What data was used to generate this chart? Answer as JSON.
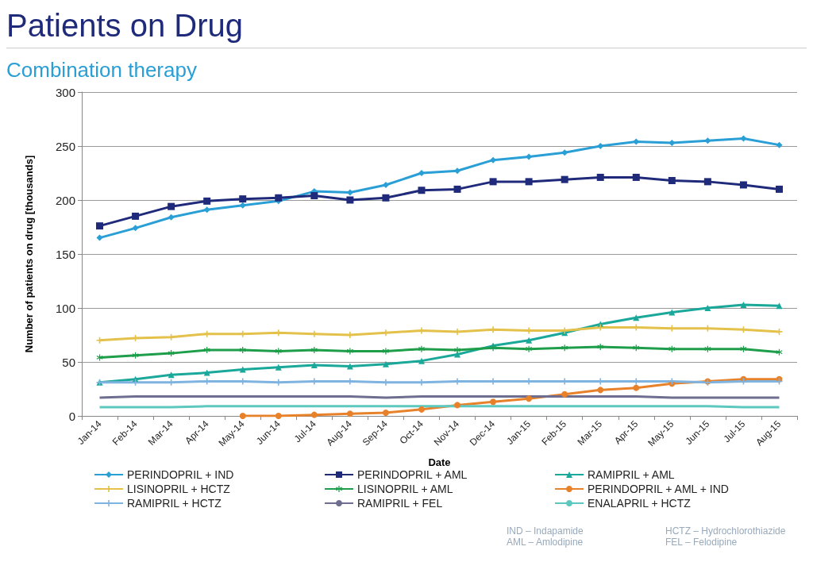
{
  "chart_data": {
    "type": "line",
    "title": "Patients on Drug",
    "subtitle": "Combination therapy",
    "xlabel": "Date",
    "ylabel": "Number of patients on drug [thousands]",
    "categories": [
      "Jan-14",
      "Feb-14",
      "Mar-14",
      "Apr-14",
      "May-14",
      "Jun-14",
      "Jul-14",
      "Aug-14",
      "Sep-14",
      "Oct-14",
      "Nov-14",
      "Dec-14",
      "Jan-15",
      "Feb-15",
      "Mar-15",
      "Apr-15",
      "May-15",
      "Jun-15",
      "Jul-15",
      "Aug-15"
    ],
    "series": [
      {
        "name": "PERINDOPRIL + IND",
        "color": "#2a9fd6",
        "marker": "diamond",
        "values": [
          165,
          174,
          184,
          191,
          195,
          199,
          208,
          207,
          214,
          225,
          227,
          237,
          240,
          244,
          250,
          254,
          253,
          255,
          257,
          251
        ]
      },
      {
        "name": "PERINDOPRIL + AML",
        "color": "#1f2a7a",
        "marker": "square",
        "values": [
          176,
          185,
          194,
          199,
          201,
          202,
          204,
          200,
          202,
          209,
          210,
          217,
          217,
          219,
          221,
          221,
          218,
          217,
          214,
          210
        ]
      },
      {
        "name": "RAMIPRIL + AML",
        "color": "#1aa89a",
        "marker": "triangle",
        "values": [
          31,
          34,
          38,
          40,
          43,
          45,
          47,
          46,
          48,
          51,
          57,
          65,
          70,
          77,
          85,
          91,
          96,
          100,
          103,
          102
        ]
      },
      {
        "name": "LISINOPRIL + HCTZ",
        "color": "#e3c14a",
        "marker": "cross",
        "values": [
          70,
          72,
          73,
          76,
          76,
          77,
          76,
          75,
          77,
          79,
          78,
          80,
          79,
          79,
          82,
          82,
          81,
          81,
          80,
          78
        ]
      },
      {
        "name": "LISINOPRIL + AML",
        "color": "#1e9e4a",
        "marker": "star",
        "values": [
          54,
          56,
          58,
          61,
          61,
          60,
          61,
          60,
          60,
          62,
          61,
          63,
          62,
          63,
          64,
          63,
          62,
          62,
          62,
          59
        ]
      },
      {
        "name": "PERINDOPRIL + AML + IND",
        "color": "#e8822a",
        "marker": "circle",
        "values": [
          null,
          null,
          null,
          null,
          0,
          0,
          1,
          2,
          3,
          6,
          10,
          13,
          16,
          20,
          24,
          26,
          30,
          32,
          34,
          34
        ]
      },
      {
        "name": "RAMIPRIL + HCTZ",
        "color": "#7fb3e0",
        "marker": "cross",
        "values": [
          31,
          31,
          31,
          32,
          32,
          31,
          32,
          32,
          31,
          31,
          32,
          32,
          32,
          32,
          32,
          32,
          32,
          31,
          32,
          32
        ]
      },
      {
        "name": "RAMIPRIL + FEL",
        "color": "#6e6e90",
        "marker": "none",
        "values": [
          17,
          18,
          18,
          18,
          18,
          18,
          18,
          18,
          17,
          18,
          18,
          18,
          18,
          18,
          18,
          18,
          17,
          17,
          17,
          17
        ]
      },
      {
        "name": "ENALAPRIL + HCTZ",
        "color": "#5cc8c0",
        "marker": "none",
        "values": [
          8,
          8,
          8,
          9,
          9,
          9,
          9,
          9,
          9,
          9,
          9,
          9,
          9,
          9,
          9,
          9,
          9,
          9,
          8,
          8
        ]
      }
    ],
    "ylim": [
      0,
      300
    ],
    "yticks": [
      0,
      50,
      100,
      150,
      200,
      250,
      300
    ],
    "grid": "y",
    "legend": "bottom",
    "annotations": [
      "IND – Indapamide",
      "HCTZ – Hydrochlorothiazide",
      "AML – Amlodipine",
      "FEL – Felodipine"
    ]
  }
}
